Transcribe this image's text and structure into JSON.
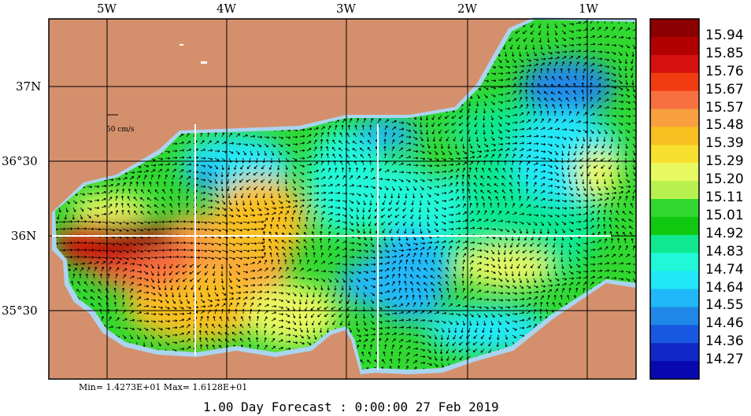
{
  "map": {
    "lon_labels": [
      "5W",
      "4W",
      "3W",
      "2W",
      "1W"
    ],
    "lat_labels": [
      "37N",
      "36°30",
      "36N",
      "35°30"
    ],
    "scale_label": "50 cm/s",
    "min_max": "Min= 1.4273E+01  Max= 1.6128E+01",
    "forecast": "1.00 Day Forecast :  0:00:00  27 Feb 2019",
    "land_color": "#d4906c",
    "coast_color": "#aad4f0"
  },
  "colorbar": {
    "labels": [
      "15.94",
      "15.85",
      "15.76",
      "15.67",
      "15.57",
      "15.48",
      "15.39",
      "15.29",
      "15.20",
      "15.11",
      "15.01",
      "14.92",
      "14.83",
      "14.74",
      "14.64",
      "14.55",
      "14.46",
      "14.36",
      "14.27"
    ],
    "colors": [
      "#8b0000",
      "#b00000",
      "#d61010",
      "#f03c10",
      "#f87040",
      "#f8a040",
      "#f8c020",
      "#f8e030",
      "#e8f860",
      "#b8f050",
      "#30d830",
      "#10c810",
      "#10e890",
      "#20f8d8",
      "#20e8f8",
      "#20b8f8",
      "#2088e8",
      "#1858e0",
      "#1028c8",
      "#0808b0"
    ]
  }
}
